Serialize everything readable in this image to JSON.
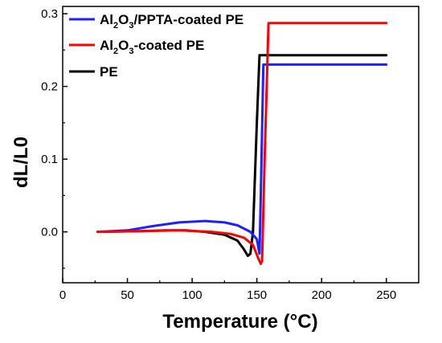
{
  "chart_data": {
    "type": "line",
    "xlabel": "Temperature (°C)",
    "ylabel": "dL/L0",
    "xlim": [
      0,
      275
    ],
    "ylim": [
      -0.07,
      0.31
    ],
    "xticks": [
      0,
      50,
      100,
      150,
      200,
      250
    ],
    "xtick_labels": [
      "0",
      "50",
      "100",
      "150",
      "200",
      "250"
    ],
    "yticks": [
      0.0,
      0.1,
      0.2,
      0.3
    ],
    "ytick_labels": [
      "0.0",
      "0.1",
      "0.2",
      "0.3"
    ],
    "grid": false,
    "legend_position": "top-left",
    "series": [
      {
        "name": "Al2O3/PPTA-coated PE",
        "legend": {
          "main": "Al",
          "sub1": "2",
          "mid": "O",
          "sub2": "3",
          "rest": "/PPTA-coated PE"
        },
        "color": "#1f1fff",
        "x": [
          27,
          50,
          70,
          90,
          110,
          125,
          135,
          145,
          150,
          152,
          153,
          155,
          250
        ],
        "y": [
          0.0,
          0.002,
          0.008,
          0.013,
          0.015,
          0.013,
          0.009,
          0.0,
          -0.01,
          -0.03,
          0.05,
          0.23,
          0.23
        ]
      },
      {
        "name": "Al2O3-coated PE",
        "legend": {
          "main": "Al",
          "sub1": "2",
          "mid": "O",
          "sub2": "3",
          "rest": "-coated PE"
        },
        "color": "#ff0000",
        "x": [
          27,
          60,
          90,
          115,
          130,
          140,
          147,
          151,
          153,
          154,
          156,
          159,
          250
        ],
        "y": [
          0.0,
          0.001,
          0.002,
          0.0,
          -0.003,
          -0.008,
          -0.018,
          -0.036,
          -0.044,
          -0.04,
          0.1,
          0.287,
          0.287
        ]
      },
      {
        "name": "PE",
        "legend": {
          "main": "PE",
          "sub1": "",
          "mid": "",
          "sub2": "",
          "rest": ""
        },
        "color": "#000000",
        "x": [
          27,
          60,
          80,
          95,
          110,
          125,
          135,
          140,
          143,
          145,
          147,
          150,
          152,
          250
        ],
        "y": [
          0.0,
          0.001,
          0.002,
          0.002,
          0.0,
          -0.004,
          -0.012,
          -0.024,
          -0.033,
          -0.03,
          0.0,
          0.15,
          0.243,
          0.243
        ]
      }
    ]
  }
}
